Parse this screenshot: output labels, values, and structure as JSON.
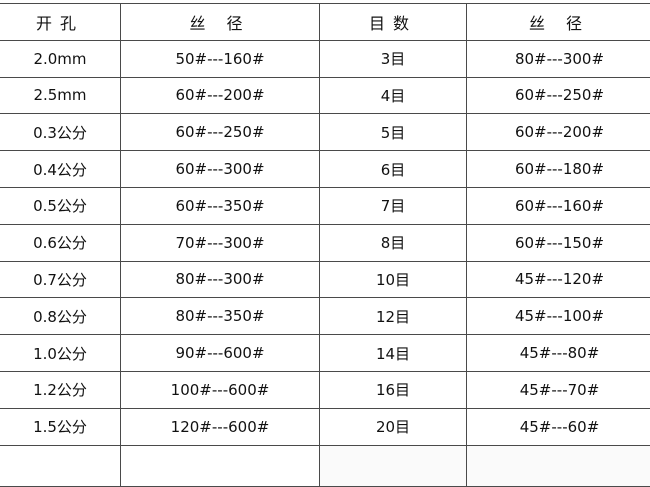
{
  "headers": [
    "开孔",
    "丝 径",
    "目数",
    "丝 径"
  ],
  "rows": [
    [
      "2.0mm",
      "50#---160#",
      "3目",
      "80#---300#"
    ],
    [
      "2.5mm",
      "60#---200#",
      "4目",
      "60#---250#"
    ],
    [
      "0.3公分",
      "60#---250#",
      "5目",
      "60#---200#"
    ],
    [
      "0.4公分",
      "60#---300#",
      "6目",
      "60#---180#"
    ],
    [
      "0.5公分",
      "60#---350#",
      "7目",
      "60#---160#"
    ],
    [
      "0.6公分",
      "70#---300#",
      "8目",
      "60#---150#"
    ],
    [
      "0.7公分",
      "80#---300#",
      "10目",
      "45#---120#"
    ],
    [
      "0.8公分",
      "80#---350#",
      "12目",
      "45#---100#"
    ],
    [
      "1.0公分",
      "90#---600#",
      "14目",
      "45#---80#"
    ],
    [
      "1.2公分",
      "100#---600#",
      "16目",
      "45#---70#"
    ],
    [
      "1.5公分",
      "120#---600#",
      "20目",
      "45#---60#"
    ]
  ]
}
